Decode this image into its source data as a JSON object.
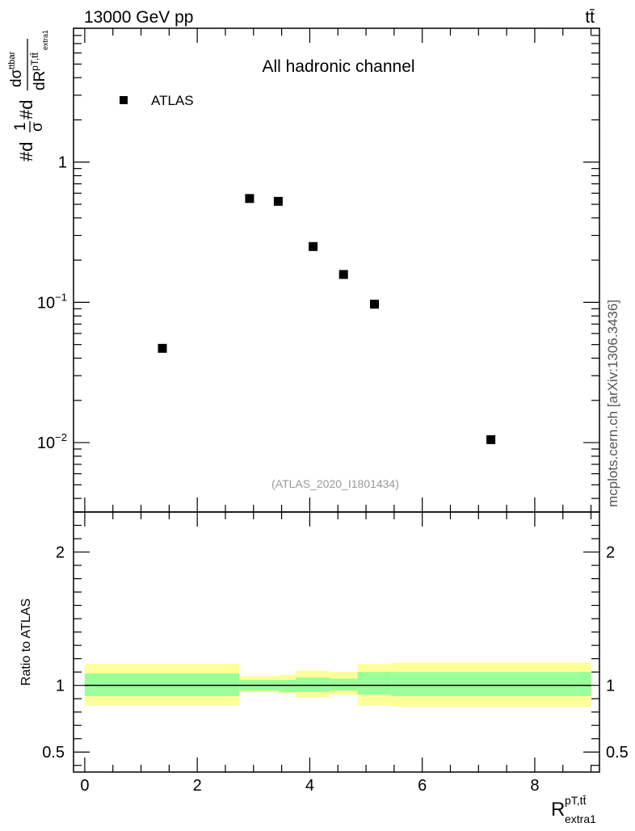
{
  "header": {
    "left": "13000 GeV pp",
    "right": "tt̄"
  },
  "side_label": "mcplots.cern.ch [arXiv:1306.3436]",
  "chart_data": [
    {
      "panel": "main",
      "type": "scatter",
      "title": "All hadronic channel",
      "watermark": "(ATLAS_2020_I1801434)",
      "ylabel": {
        "prefix": "#d",
        "frac1_num": "1",
        "frac1_den": "σ",
        "mid": "#d",
        "frac2_num": "dσ",
        "frac2_num_sup": "ttbar",
        "frac2_den": "dR",
        "frac2_den_sup": "pT,tt̄",
        "frac2_den_sub": "extra1"
      },
      "y_log": true,
      "xlim": [
        -0.2,
        9.15
      ],
      "ylim": [
        0.0032,
        9.0
      ],
      "yticks": [
        {
          "value": 1,
          "base": "1",
          "exp": ""
        },
        {
          "value": 0.1,
          "base": "10",
          "exp": "−1"
        },
        {
          "value": 0.01,
          "base": "10",
          "exp": "−2"
        }
      ],
      "legend": {
        "position": "top-left",
        "entries": [
          {
            "name": "ATLAS",
            "marker": "square",
            "color": "#000000"
          }
        ]
      },
      "series": [
        {
          "name": "ATLAS",
          "x": [
            1.38,
            2.93,
            3.44,
            4.06,
            4.6,
            5.15,
            7.22
          ],
          "y": [
            0.047,
            0.55,
            0.525,
            0.25,
            0.158,
            0.097,
            0.0105
          ]
        }
      ]
    },
    {
      "panel": "ratio",
      "type": "area",
      "ylabel": "Ratio to ATLAS",
      "xlabel": {
        "base": "R",
        "sup": "pT,tt̄",
        "sub": "extra1"
      },
      "xlim": [
        -0.2,
        9.15
      ],
      "ylim": [
        0.35,
        2.3
      ],
      "xticks": [
        0,
        2,
        4,
        6,
        8
      ],
      "yticks": [
        0.5,
        1,
        2
      ],
      "reference_line": 1,
      "bands": [
        {
          "x0": 0.0,
          "x1": 2.75,
          "inner": [
            0.92,
            1.09
          ],
          "outer": [
            0.85,
            1.16
          ]
        },
        {
          "x0": 2.75,
          "x1": 3.45,
          "inner": [
            0.96,
            1.04
          ],
          "outer": [
            0.95,
            1.07
          ]
        },
        {
          "x0": 3.45,
          "x1": 3.75,
          "inner": [
            0.95,
            1.04
          ],
          "outer": [
            0.94,
            1.08
          ]
        },
        {
          "x0": 3.75,
          "x1": 4.35,
          "inner": [
            0.95,
            1.06
          ],
          "outer": [
            0.91,
            1.11
          ]
        },
        {
          "x0": 4.35,
          "x1": 4.85,
          "inner": [
            0.96,
            1.05
          ],
          "outer": [
            0.93,
            1.1
          ]
        },
        {
          "x0": 4.85,
          "x1": 5.45,
          "inner": [
            0.93,
            1.1
          ],
          "outer": [
            0.85,
            1.16
          ]
        },
        {
          "x0": 5.45,
          "x1": 9.0,
          "inner": [
            0.92,
            1.1
          ],
          "outer": [
            0.84,
            1.17
          ]
        }
      ],
      "colors": {
        "inner": "#99ff99",
        "outer": "#ffff99"
      }
    }
  ]
}
